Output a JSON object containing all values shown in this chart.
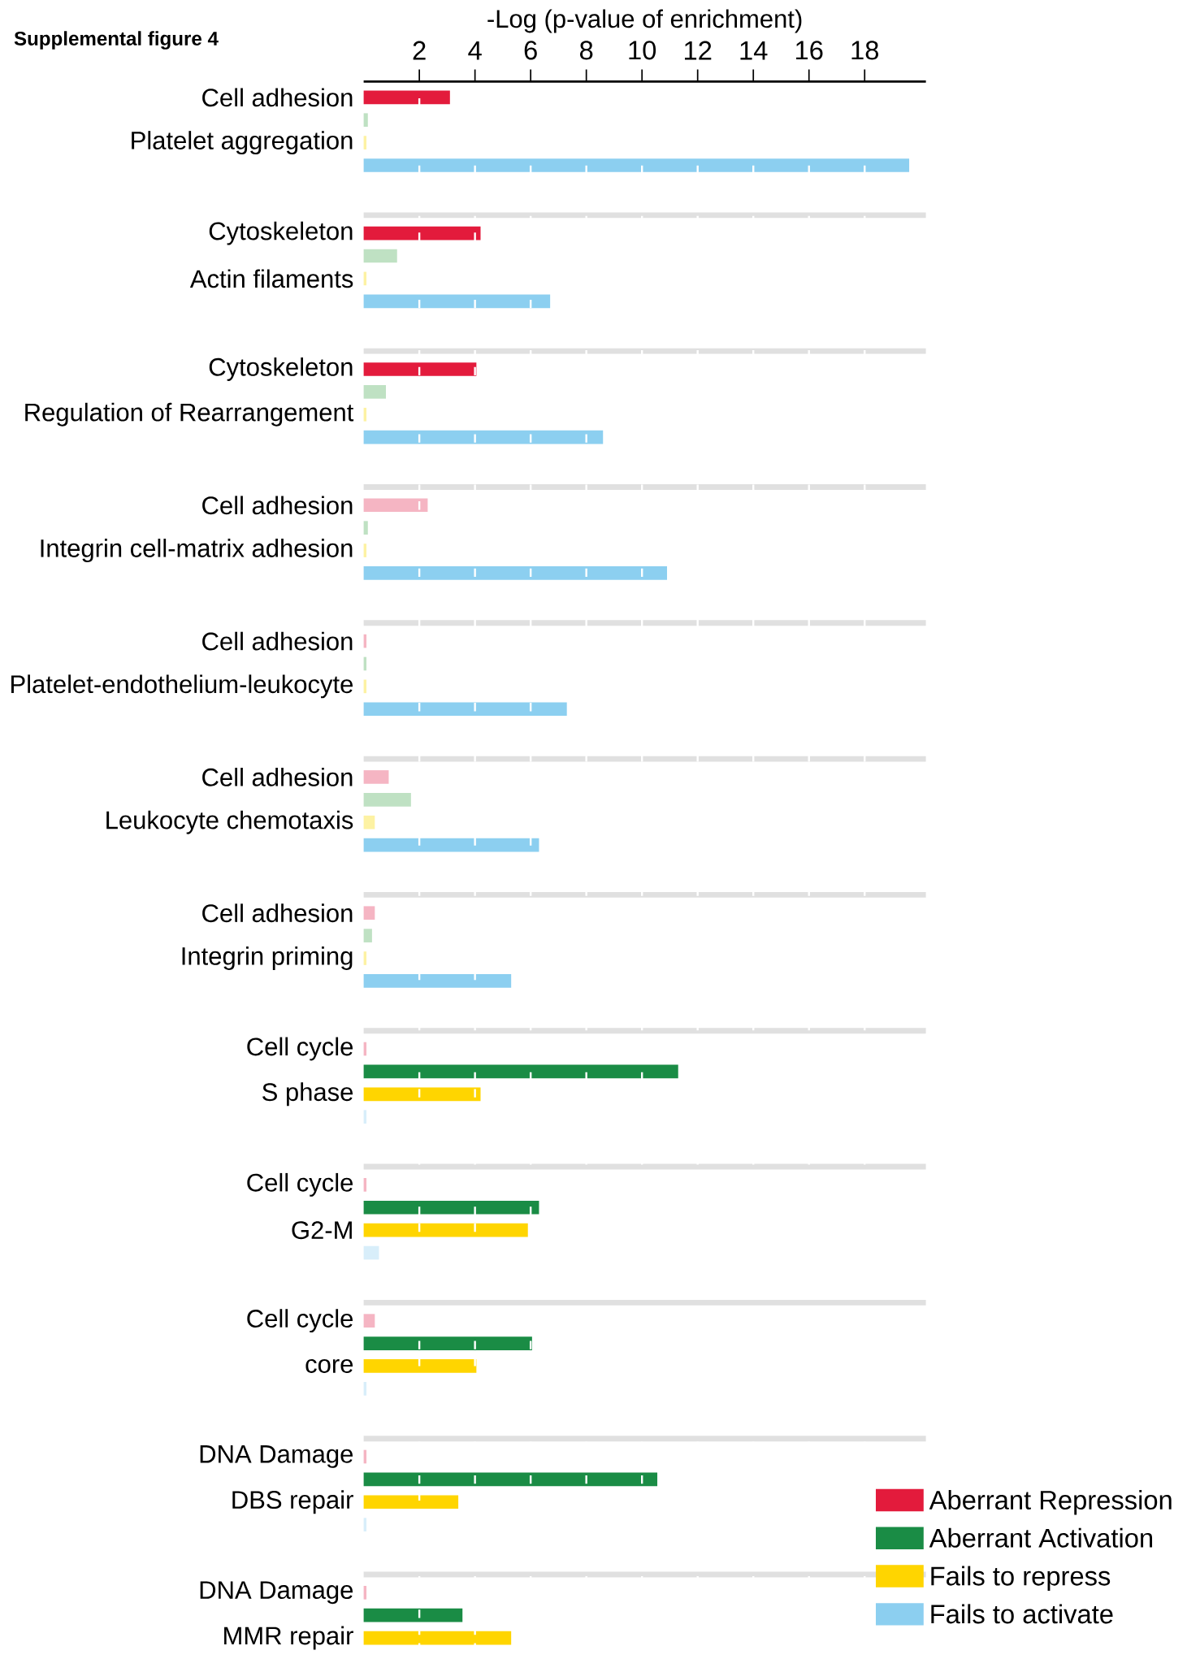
{
  "chart_data": {
    "type": "bar",
    "orientation": "horizontal",
    "title": "Supplemental figure 4",
    "xlabel": "-Log (p-value of enrichment)",
    "xlim": [
      0,
      20.2
    ],
    "xticks": [
      2,
      4,
      6,
      8,
      10,
      12,
      14,
      16,
      18
    ],
    "grid": "x",
    "legend": "bottom right",
    "categories": [
      "Cell adhesion",
      null,
      "Platelet aggregation",
      null,
      null,
      null,
      "Cytoskeleton",
      null,
      "Actin filaments",
      null,
      null,
      null,
      "Cytoskeleton",
      null,
      "Regulation of Rearrangement",
      null,
      null,
      null,
      "Cell adhesion",
      null,
      "Integrin cell-matrix adhesion",
      null,
      null,
      null,
      "Cell adhesion",
      null,
      "Platelet-endothelium-leukocyte",
      null,
      null,
      null,
      "Cell adhesion",
      null,
      "Leukocyte chemotaxis",
      null,
      null,
      null,
      "Cell adhesion",
      null,
      "Integrin priming",
      null,
      null,
      null,
      "Cell cycle",
      null,
      "S phase",
      null,
      null,
      null,
      "Cell cycle",
      null,
      "G2-M",
      null,
      null,
      null,
      "Cell cycle",
      null,
      "core",
      null,
      null,
      null,
      "DNA Damage",
      null,
      "DBS repair",
      null,
      null,
      null,
      "DNA Damage",
      null,
      "MMR repair"
    ],
    "series": [
      {
        "name": "Aberrant Repression",
        "color": "#e31b3c",
        "values": [
          3.1,
          null,
          null,
          null,
          null,
          null,
          4.2,
          null,
          null,
          null,
          null,
          null,
          4.05,
          null,
          null,
          null,
          null,
          null,
          2.3,
          null,
          null,
          null,
          null,
          null,
          0.1,
          null,
          null,
          null,
          null,
          null,
          0.9,
          null,
          null,
          null,
          null,
          null,
          0.4,
          null,
          null,
          null,
          null,
          null,
          0.1,
          null,
          null,
          null,
          null,
          null,
          0.1,
          null,
          null,
          null,
          null,
          null,
          0.4,
          null,
          null,
          null,
          null,
          null,
          0.1,
          null,
          null,
          null,
          null,
          null,
          0.1,
          null,
          null
        ],
        "colors": [
          "#e31b3c",
          null,
          null,
          null,
          null,
          null,
          "#e31b3c",
          null,
          null,
          null,
          null,
          null,
          "#e31b3c",
          null,
          null,
          null,
          null,
          null,
          "#f5b5c3",
          null,
          null,
          null,
          null,
          null,
          "#f5b5c3",
          null,
          null,
          null,
          null,
          null,
          "#f5b5c3",
          null,
          null,
          null,
          null,
          null,
          "#f5b5c3",
          null,
          null,
          null,
          null,
          null,
          "#f5b5c3",
          null,
          null,
          null,
          null,
          null,
          "#f5b5c3",
          null,
          null,
          null,
          null,
          null,
          "#f5b5c3",
          null,
          null,
          null,
          null,
          null,
          "#f5b5c3",
          null,
          null,
          null,
          null,
          null,
          "#f5b5c3",
          null,
          null
        ]
      },
      {
        "name": "Aberrant Activation",
        "color": "#1a8c45",
        "values": [
          null,
          0.15,
          null,
          null,
          null,
          null,
          null,
          1.2,
          null,
          null,
          null,
          null,
          null,
          0.8,
          null,
          null,
          null,
          null,
          null,
          0.15,
          null,
          null,
          null,
          null,
          null,
          0.1,
          null,
          null,
          null,
          null,
          null,
          1.7,
          null,
          null,
          null,
          null,
          null,
          0.3,
          null,
          null,
          null,
          null,
          null,
          11.3,
          null,
          null,
          null,
          null,
          null,
          6.3,
          null,
          null,
          null,
          null,
          null,
          6.05,
          null,
          null,
          null,
          null,
          null,
          10.55,
          null,
          null,
          null,
          null,
          null,
          3.55,
          null
        ],
        "colors": [
          null,
          "#bfe1c3",
          null,
          null,
          null,
          null,
          null,
          "#bfe1c3",
          null,
          null,
          null,
          null,
          null,
          "#bfe1c3",
          null,
          null,
          null,
          null,
          null,
          "#bfe1c3",
          null,
          null,
          null,
          null,
          null,
          "#bfe1c3",
          null,
          null,
          null,
          null,
          null,
          "#bfe1c3",
          null,
          null,
          null,
          null,
          null,
          "#bfe1c3",
          null,
          null,
          null,
          null,
          null,
          "#1a8c45",
          null,
          null,
          null,
          null,
          null,
          "#1a8c45",
          null,
          null,
          null,
          null,
          null,
          "#1a8c45",
          null,
          null,
          null,
          null,
          null,
          "#1a8c45",
          null,
          null,
          null,
          null,
          null,
          "#1a8c45",
          null
        ]
      },
      {
        "name": "Fails to repress",
        "color": "#ffd500",
        "values": [
          null,
          null,
          0.1,
          null,
          null,
          null,
          null,
          null,
          0.1,
          null,
          null,
          null,
          null,
          null,
          0.1,
          null,
          null,
          null,
          null,
          null,
          0.1,
          null,
          null,
          null,
          null,
          null,
          0.1,
          null,
          null,
          null,
          null,
          null,
          0.4,
          null,
          null,
          null,
          null,
          null,
          0.1,
          null,
          null,
          null,
          null,
          null,
          4.2,
          null,
          null,
          null,
          null,
          null,
          5.9,
          null,
          null,
          null,
          null,
          null,
          4.05,
          null,
          null,
          null,
          null,
          null,
          3.4,
          null,
          null,
          null,
          null,
          null,
          5.3
        ],
        "colors": [
          null,
          null,
          "#fdf2a3",
          null,
          null,
          null,
          null,
          null,
          "#fdf2a3",
          null,
          null,
          null,
          null,
          null,
          "#fdf2a3",
          null,
          null,
          null,
          null,
          null,
          "#fdf2a3",
          null,
          null,
          null,
          null,
          null,
          "#fdf2a3",
          null,
          null,
          null,
          null,
          null,
          "#fdf2a3",
          null,
          null,
          null,
          null,
          null,
          "#fdf2a3",
          null,
          null,
          null,
          null,
          null,
          "#ffd500",
          null,
          null,
          null,
          null,
          null,
          "#ffd500",
          null,
          null,
          null,
          null,
          null,
          "#ffd500",
          null,
          null,
          null,
          null,
          null,
          "#ffd500",
          null,
          null,
          null,
          null,
          null,
          "#ffd500"
        ]
      },
      {
        "name": "Fails to activate",
        "color": "#8ccff0",
        "values": [
          null,
          null,
          null,
          19.6,
          null,
          null,
          null,
          null,
          null,
          6.7,
          null,
          null,
          null,
          null,
          null,
          8.6,
          null,
          null,
          null,
          null,
          null,
          10.9,
          null,
          null,
          null,
          null,
          null,
          7.3,
          null,
          null,
          null,
          null,
          null,
          6.3,
          null,
          null,
          null,
          null,
          null,
          5.3,
          null,
          null,
          null,
          null,
          null,
          0.1,
          null,
          null,
          null,
          null,
          null,
          0.55,
          null,
          null,
          null,
          null,
          null,
          0.1,
          null,
          null,
          null,
          null,
          null,
          0.1,
          null,
          null,
          null,
          null,
          null
        ],
        "colors": [
          null,
          null,
          null,
          "#8ccff0",
          null,
          null,
          null,
          null,
          null,
          "#8ccff0",
          null,
          null,
          null,
          null,
          null,
          "#8ccff0",
          null,
          null,
          null,
          null,
          null,
          "#8ccff0",
          null,
          null,
          null,
          null,
          null,
          "#8ccff0",
          null,
          null,
          null,
          null,
          null,
          "#8ccff0",
          null,
          null,
          null,
          null,
          null,
          "#8ccff0",
          null,
          null,
          null,
          null,
          null,
          "#d8eefa",
          null,
          null,
          null,
          null,
          null,
          "#d8eefa",
          null,
          null,
          null,
          null,
          null,
          "#d8eefa",
          null,
          null,
          null,
          null,
          null,
          "#d8eefa",
          null,
          null,
          null,
          null,
          null
        ]
      }
    ]
  }
}
